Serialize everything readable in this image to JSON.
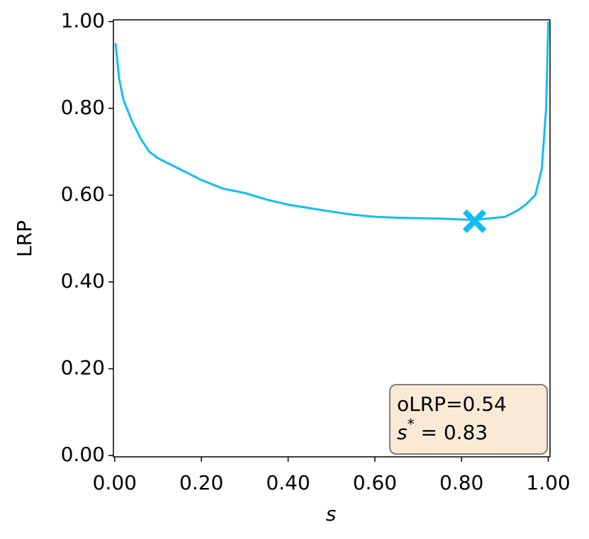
{
  "chart_data": {
    "type": "line",
    "xlabel": "s",
    "ylabel": "LRP",
    "x": [
      0.002,
      0.01,
      0.02,
      0.04,
      0.06,
      0.08,
      0.1,
      0.15,
      0.2,
      0.25,
      0.3,
      0.35,
      0.4,
      0.45,
      0.5,
      0.55,
      0.6,
      0.65,
      0.7,
      0.75,
      0.8,
      0.83,
      0.85,
      0.9,
      0.93,
      0.95,
      0.97,
      0.985,
      0.995,
      1.0
    ],
    "values": [
      0.95,
      0.87,
      0.82,
      0.77,
      0.73,
      0.7,
      0.685,
      0.66,
      0.635,
      0.615,
      0.605,
      0.59,
      0.578,
      0.57,
      0.562,
      0.555,
      0.55,
      0.548,
      0.547,
      0.546,
      0.544,
      0.543,
      0.545,
      0.55,
      0.565,
      0.58,
      0.6,
      0.66,
      0.8,
      1.0
    ],
    "color": "#12bdf2",
    "marker": {
      "x": 0.83,
      "y": 0.54,
      "color": "#12bdf2"
    },
    "annotation": {
      "line1": "oLRP=0.54",
      "line2": [
        "s",
        "*",
        " = 0.83"
      ]
    },
    "xlim": [
      -0.003,
      1.004
    ],
    "ylim": [
      -0.003,
      1.004
    ],
    "xticks": [
      {
        "value": 0,
        "label": "0.00"
      },
      {
        "value": 0.2,
        "label": "0.20"
      },
      {
        "value": 0.4,
        "label": "0.40"
      },
      {
        "value": 0.6,
        "label": "0.60"
      },
      {
        "value": 0.8,
        "label": "0.80"
      },
      {
        "value": 1,
        "label": "1.00"
      }
    ],
    "yticks": [
      {
        "value": 0,
        "label": "0.00"
      },
      {
        "value": 0.2,
        "label": "0.20"
      },
      {
        "value": 0.4,
        "label": "0.40"
      },
      {
        "value": 0.6,
        "label": "0.60"
      },
      {
        "value": 0.8,
        "label": "0.80"
      },
      {
        "value": 1,
        "label": "1.00"
      }
    ]
  }
}
